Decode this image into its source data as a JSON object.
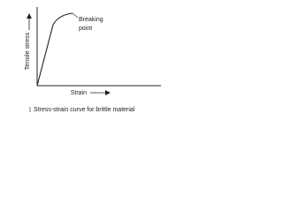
{
  "diagram": {
    "y_axis_label": "Tensile stress",
    "x_axis_label": "Strain",
    "annotation": [
      "Breaking",
      "point"
    ],
    "caption": "Stress-strain curve for brittle material"
  }
}
